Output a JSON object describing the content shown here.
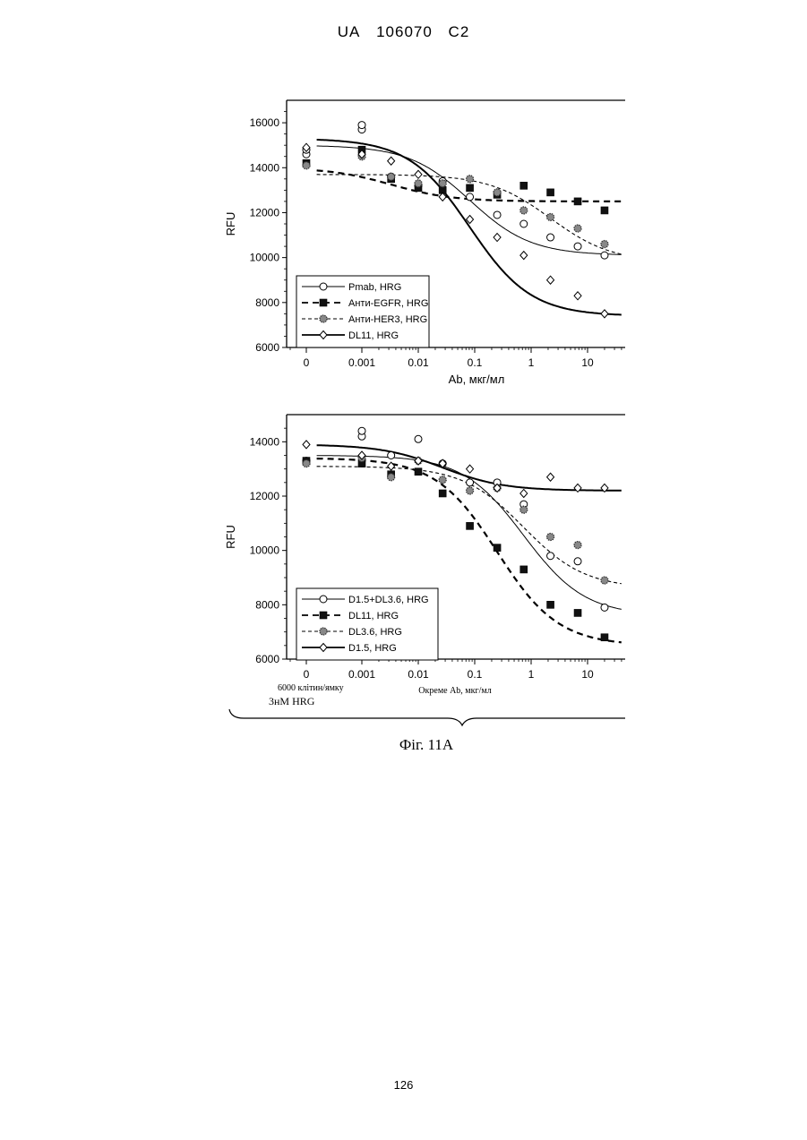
{
  "header": {
    "country": "UA",
    "number": "106070",
    "kind": "C2"
  },
  "figure_caption": "Фіг. 11А",
  "page_number": "126",
  "bottom_annotation": {
    "cells": "6000 клітин/ямку",
    "hrg": "3нМ HRG"
  },
  "chart_data": [
    {
      "type": "scatter",
      "ylabel": "RFU",
      "xlabel": "Ab, мкг/мл",
      "xscale": "log",
      "ylim": [
        6000,
        17000
      ],
      "yticks": [
        6000,
        8000,
        10000,
        12000,
        14000,
        16000
      ],
      "xtick_labels": [
        "0",
        "0.001",
        "0.01",
        "0.1",
        "1",
        "10"
      ],
      "legend_position": "bottom-left",
      "series": [
        {
          "name": "Pmab, HRG",
          "marker": "open-circle",
          "line": "thin-solid",
          "x": [
            0,
            0,
            0.001,
            0.001,
            0.0033,
            0.01,
            0.027,
            0.082,
            0.25,
            0.74,
            2.2,
            6.7,
            20
          ],
          "y": [
            14600,
            14800,
            15700,
            15900,
            13600,
            13200,
            13400,
            12700,
            11900,
            11500,
            10900,
            10500,
            10100
          ],
          "fit_y_at_x_min": 15000,
          "fit_y_at_x_max": 10100
        },
        {
          "name": "Анти-EGFR, HRG",
          "marker": "filled-square",
          "line": "dashed-bold",
          "x": [
            0,
            0.001,
            0.0033,
            0.01,
            0.027,
            0.082,
            0.25,
            0.74,
            2.2,
            6.7,
            20
          ],
          "y": [
            14200,
            14800,
            13500,
            13100,
            13000,
            13100,
            12800,
            13200,
            12900,
            12500,
            12100
          ],
          "fit_y_at_x_min": 14000,
          "fit_y_at_x_max": 12500
        },
        {
          "name": "Анти-HER3, HRG",
          "marker": "dotted-circle",
          "line": "dashed-thin",
          "x": [
            0,
            0.001,
            0.0033,
            0.01,
            0.027,
            0.082,
            0.25,
            0.74,
            2.2,
            6.7,
            20
          ],
          "y": [
            14100,
            14500,
            13600,
            13300,
            13300,
            13500,
            12900,
            12100,
            11800,
            11300,
            10600
          ],
          "fit_y_at_x_min": 13700,
          "fit_y_at_x_max": 9800
        },
        {
          "name": "DL11, HRG",
          "marker": "open-diamond",
          "line": "solid-bold",
          "x": [
            0,
            0.001,
            0.0033,
            0.01,
            0.027,
            0.082,
            0.25,
            0.74,
            2.2,
            6.7,
            20
          ],
          "y": [
            14900,
            14600,
            14300,
            13700,
            12700,
            11700,
            10900,
            10100,
            9000,
            8300,
            7500
          ],
          "fit_y_at_x_min": 15300,
          "fit_y_at_x_max": 7400
        }
      ]
    },
    {
      "type": "scatter",
      "ylabel": "RFU",
      "xlabel": "Окреме Ab, мкг/мл",
      "xscale": "log",
      "ylim": [
        6000,
        15000
      ],
      "yticks": [
        6000,
        8000,
        10000,
        12000,
        14000
      ],
      "xtick_labels": [
        "0",
        "0.001",
        "0.01",
        "0.1",
        "1",
        "10"
      ],
      "legend_position": "bottom-left",
      "series": [
        {
          "name": "D1.5+DL3.6, HRG",
          "marker": "open-circle",
          "line": "thin-solid",
          "x": [
            0,
            0.001,
            0.001,
            0.0033,
            0.01,
            0.027,
            0.082,
            0.25,
            0.74,
            2.2,
            6.7,
            20
          ],
          "y": [
            13300,
            14200,
            14400,
            13500,
            14100,
            13200,
            12500,
            12500,
            11700,
            9800,
            9600,
            7900
          ],
          "fit_y_at_x_min": 13500,
          "fit_y_at_x_max": 7600
        },
        {
          "name": "DL11, HRG",
          "marker": "filled-square",
          "line": "dashed-bold",
          "x": [
            0,
            0.001,
            0.0033,
            0.01,
            0.027,
            0.082,
            0.25,
            0.74,
            2.2,
            6.7,
            20
          ],
          "y": [
            13300,
            13200,
            12800,
            12900,
            12100,
            10900,
            10100,
            9300,
            8000,
            7700,
            6800
          ],
          "fit_y_at_x_min": 13400,
          "fit_y_at_x_max": 6500
        },
        {
          "name": "DL3.6, HRG",
          "marker": "dotted-circle",
          "line": "dashed-thin",
          "x": [
            0,
            0.001,
            0.0033,
            0.01,
            0.027,
            0.082,
            0.25,
            0.74,
            2.2,
            6.7,
            20
          ],
          "y": [
            13200,
            13400,
            12700,
            13300,
            12600,
            12200,
            12300,
            11500,
            10500,
            10200,
            8900
          ],
          "fit_y_at_x_min": 13100,
          "fit_y_at_x_max": 8600
        },
        {
          "name": "D1.5, HRG",
          "marker": "open-diamond",
          "line": "solid-bold",
          "x": [
            0,
            0.001,
            0.0033,
            0.01,
            0.027,
            0.082,
            0.25,
            0.74,
            2.2,
            6.7,
            20
          ],
          "y": [
            13900,
            13500,
            13100,
            13300,
            13200,
            13000,
            12300,
            12100,
            12700,
            12300,
            12300
          ],
          "fit_y_at_x_min": 13900,
          "fit_y_at_x_max": 12200
        }
      ]
    }
  ]
}
